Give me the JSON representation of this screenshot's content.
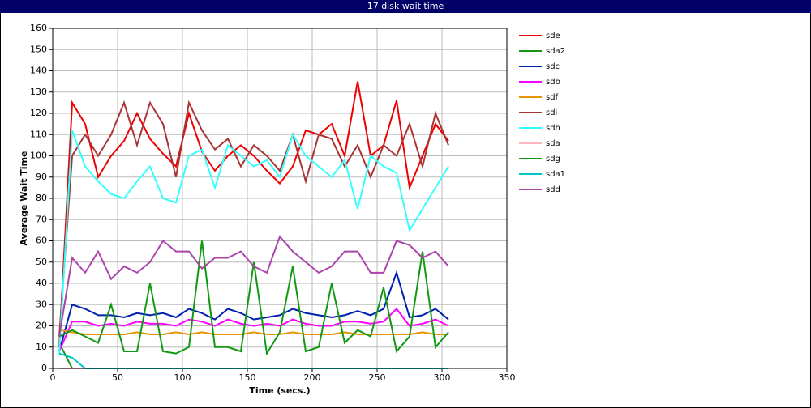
{
  "chart_data": {
    "type": "line",
    "title": "17 disk wait time",
    "xlabel": "Time (secs.)",
    "ylabel": "Average Wait Time",
    "x": [
      5,
      15,
      25,
      35,
      45,
      55,
      65,
      75,
      85,
      95,
      105,
      115,
      125,
      135,
      145,
      155,
      165,
      175,
      185,
      195,
      205,
      215,
      225,
      235,
      245,
      255,
      265,
      275,
      285,
      295,
      305
    ],
    "xlim": [
      0,
      350
    ],
    "xticks": [
      0,
      50,
      100,
      150,
      200,
      250,
      300,
      350
    ],
    "ylim": [
      0,
      160
    ],
    "yticks": [
      0,
      10,
      20,
      30,
      40,
      50,
      60,
      70,
      80,
      90,
      100,
      110,
      120,
      130,
      140,
      150,
      160
    ],
    "grid": true,
    "legend": "right",
    "series": [
      {
        "name": "sde",
        "color": "#ee0000",
        "values": [
          10,
          125,
          115,
          90,
          100,
          107,
          120,
          108,
          101,
          95,
          120,
          102,
          93,
          100,
          105,
          100,
          93,
          87,
          95,
          112,
          110,
          115,
          100,
          135,
          100,
          105,
          126,
          85,
          100,
          115,
          107
        ]
      },
      {
        "name": "sda2",
        "color": "#149614",
        "values": [
          12,
          0,
          0,
          0,
          0,
          0,
          0,
          0,
          0,
          0,
          0,
          0,
          0,
          0,
          0,
          0,
          0,
          0,
          0,
          0,
          0,
          0,
          0,
          0,
          0,
          0,
          0,
          0,
          0,
          0,
          0
        ]
      },
      {
        "name": "sdc",
        "color": "#0020b0",
        "values": [
          8,
          30,
          28,
          25,
          25,
          24,
          26,
          25,
          26,
          24,
          28,
          26,
          23,
          28,
          26,
          23,
          24,
          25,
          28,
          26,
          25,
          24,
          25,
          27,
          25,
          28,
          45,
          24,
          25,
          28,
          23
        ]
      },
      {
        "name": "sdb",
        "color": "#ff00ff",
        "values": [
          8,
          22,
          22,
          20,
          21,
          20,
          22,
          21,
          21,
          20,
          23,
          22,
          20,
          23,
          21,
          20,
          21,
          20,
          23,
          21,
          20,
          20,
          22,
          22,
          21,
          22,
          28,
          20,
          21,
          23,
          20
        ]
      },
      {
        "name": "sdf",
        "color": "#e69500",
        "values": [
          18,
          17,
          16,
          16,
          16,
          16,
          17,
          16,
          16,
          17,
          16,
          17,
          16,
          16,
          16,
          17,
          16,
          16,
          17,
          16,
          16,
          16,
          17,
          16,
          16,
          16,
          16,
          16,
          17,
          16,
          16
        ]
      },
      {
        "name": "sdi",
        "color": "#aa3333",
        "values": [
          15,
          100,
          110,
          100,
          110,
          125,
          105,
          125,
          115,
          90,
          125,
          112,
          103,
          108,
          95,
          105,
          100,
          93,
          110,
          88,
          110,
          108,
          95,
          105,
          90,
          105,
          100,
          115,
          95,
          120,
          105
        ]
      },
      {
        "name": "sdh",
        "color": "#33ffff",
        "values": [
          7,
          112,
          95,
          88,
          82,
          80,
          88,
          95,
          80,
          78,
          100,
          103,
          85,
          105,
          100,
          95,
          98,
          90,
          110,
          100,
          95,
          90,
          98,
          75,
          100,
          95,
          92,
          65,
          75,
          85,
          95
        ]
      },
      {
        "name": "sda",
        "color": "#ffb6c1",
        "values": [
          0,
          0,
          0,
          0,
          0,
          0,
          0,
          0,
          0,
          0,
          0,
          0,
          0,
          0,
          0,
          0,
          0,
          0,
          0,
          0,
          0,
          0,
          0,
          0,
          0,
          0,
          0,
          0,
          0,
          0,
          0
        ]
      },
      {
        "name": "sdg",
        "color": "#119911",
        "values": [
          15,
          18,
          15,
          12,
          30,
          8,
          8,
          40,
          8,
          7,
          10,
          60,
          10,
          10,
          8,
          50,
          7,
          17,
          48,
          8,
          10,
          40,
          12,
          18,
          15,
          38,
          8,
          15,
          55,
          10,
          17
        ]
      },
      {
        "name": "sda1",
        "color": "#00c8c8",
        "values": [
          7,
          5,
          0,
          0,
          0,
          0,
          0,
          0,
          0,
          0,
          0,
          0,
          0,
          0,
          0,
          0,
          0,
          0,
          0,
          0,
          0,
          0,
          0,
          0,
          0,
          0,
          0,
          0,
          0,
          0,
          0
        ]
      },
      {
        "name": "sdd",
        "color": "#aa44aa",
        "values": [
          15,
          52,
          45,
          55,
          42,
          48,
          45,
          50,
          60,
          55,
          55,
          47,
          52,
          52,
          55,
          48,
          45,
          62,
          55,
          50,
          45,
          48,
          55,
          55,
          45,
          45,
          60,
          58,
          52,
          55,
          48
        ]
      }
    ]
  }
}
